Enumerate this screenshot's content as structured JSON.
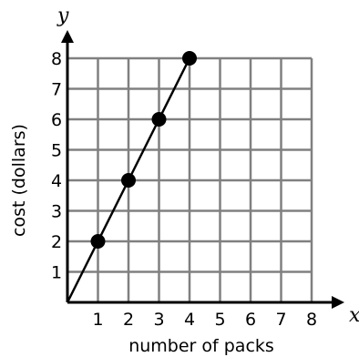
{
  "chart_data": {
    "type": "line",
    "xlabel": "number of packs",
    "ylabel": "cost (dollars)",
    "x_axis_var": "x",
    "y_axis_var": "y",
    "xlim": [
      0,
      8
    ],
    "ylim": [
      0,
      8
    ],
    "x_ticks": [
      "1",
      "2",
      "3",
      "4",
      "5",
      "6",
      "7",
      "8"
    ],
    "y_ticks": [
      "1",
      "2",
      "3",
      "4",
      "5",
      "6",
      "7",
      "8"
    ],
    "grid": true,
    "series": [
      {
        "x": [
          0,
          1,
          2,
          3,
          4
        ],
        "y": [
          0,
          2,
          4,
          6,
          8
        ],
        "points": [
          {
            "x": 1,
            "y": 2
          },
          {
            "x": 2,
            "y": 4
          },
          {
            "x": 3,
            "y": 6
          },
          {
            "x": 4,
            "y": 8
          }
        ]
      }
    ]
  }
}
